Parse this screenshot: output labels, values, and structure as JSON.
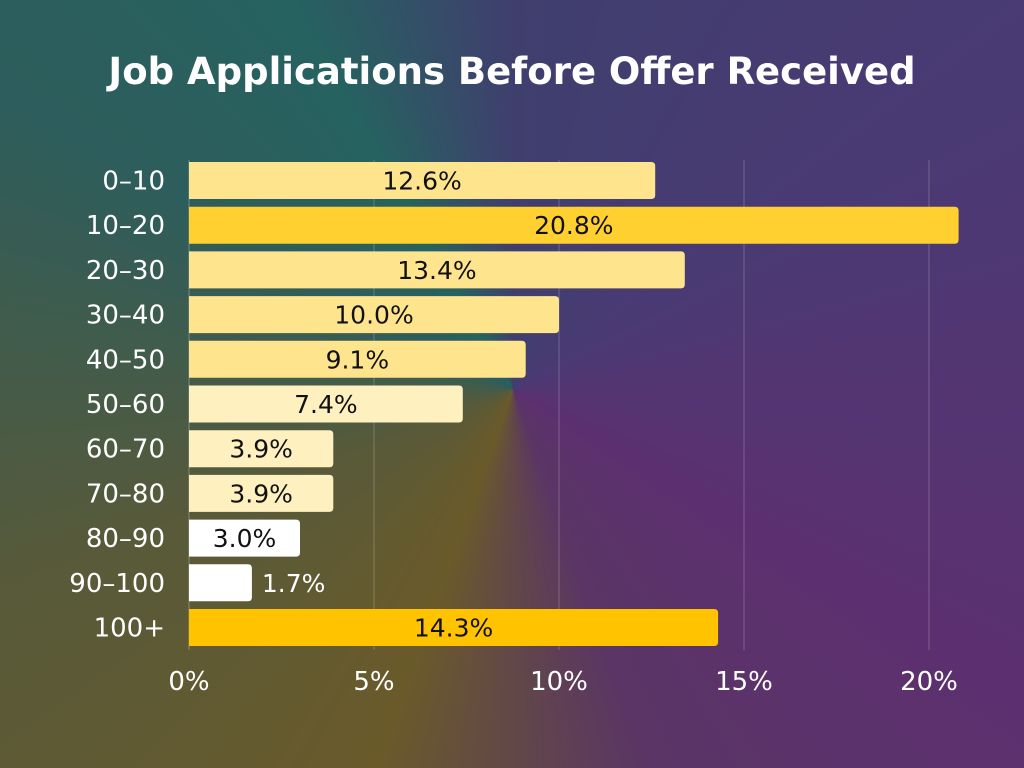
{
  "chart_data": {
    "type": "bar",
    "orientation": "horizontal",
    "title": "Job Applications Before Offer Received",
    "categories": [
      "0–10",
      "10–20",
      "20–30",
      "30–40",
      "40–50",
      "50–60",
      "60–70",
      "70–80",
      "80–90",
      "90–100",
      "100+"
    ],
    "values": [
      12.6,
      20.8,
      13.4,
      10.0,
      9.1,
      7.4,
      3.9,
      3.9,
      3.0,
      1.7,
      14.3
    ],
    "data_labels": [
      "12.6%",
      "20.8%",
      "13.4%",
      "10.0%",
      "9.1%",
      "7.4%",
      "3.9%",
      "3.9%",
      "3.0%",
      "1.7%",
      "14.3%"
    ],
    "bar_colors": [
      "#fee58d",
      "#ffd030",
      "#fee58d",
      "#fee58d",
      "#fee58d",
      "#fff0bf",
      "#fff0bf",
      "#fff0bf",
      "#ffffff",
      "#ffffff",
      "#ffc300"
    ],
    "xlim": [
      0,
      20.8
    ],
    "xticks": [
      0,
      5,
      10,
      15,
      20
    ],
    "xtick_labels": [
      "0%",
      "5%",
      "10%",
      "15%",
      "20%"
    ],
    "grid": true,
    "xlabel": "",
    "ylabel": ""
  }
}
